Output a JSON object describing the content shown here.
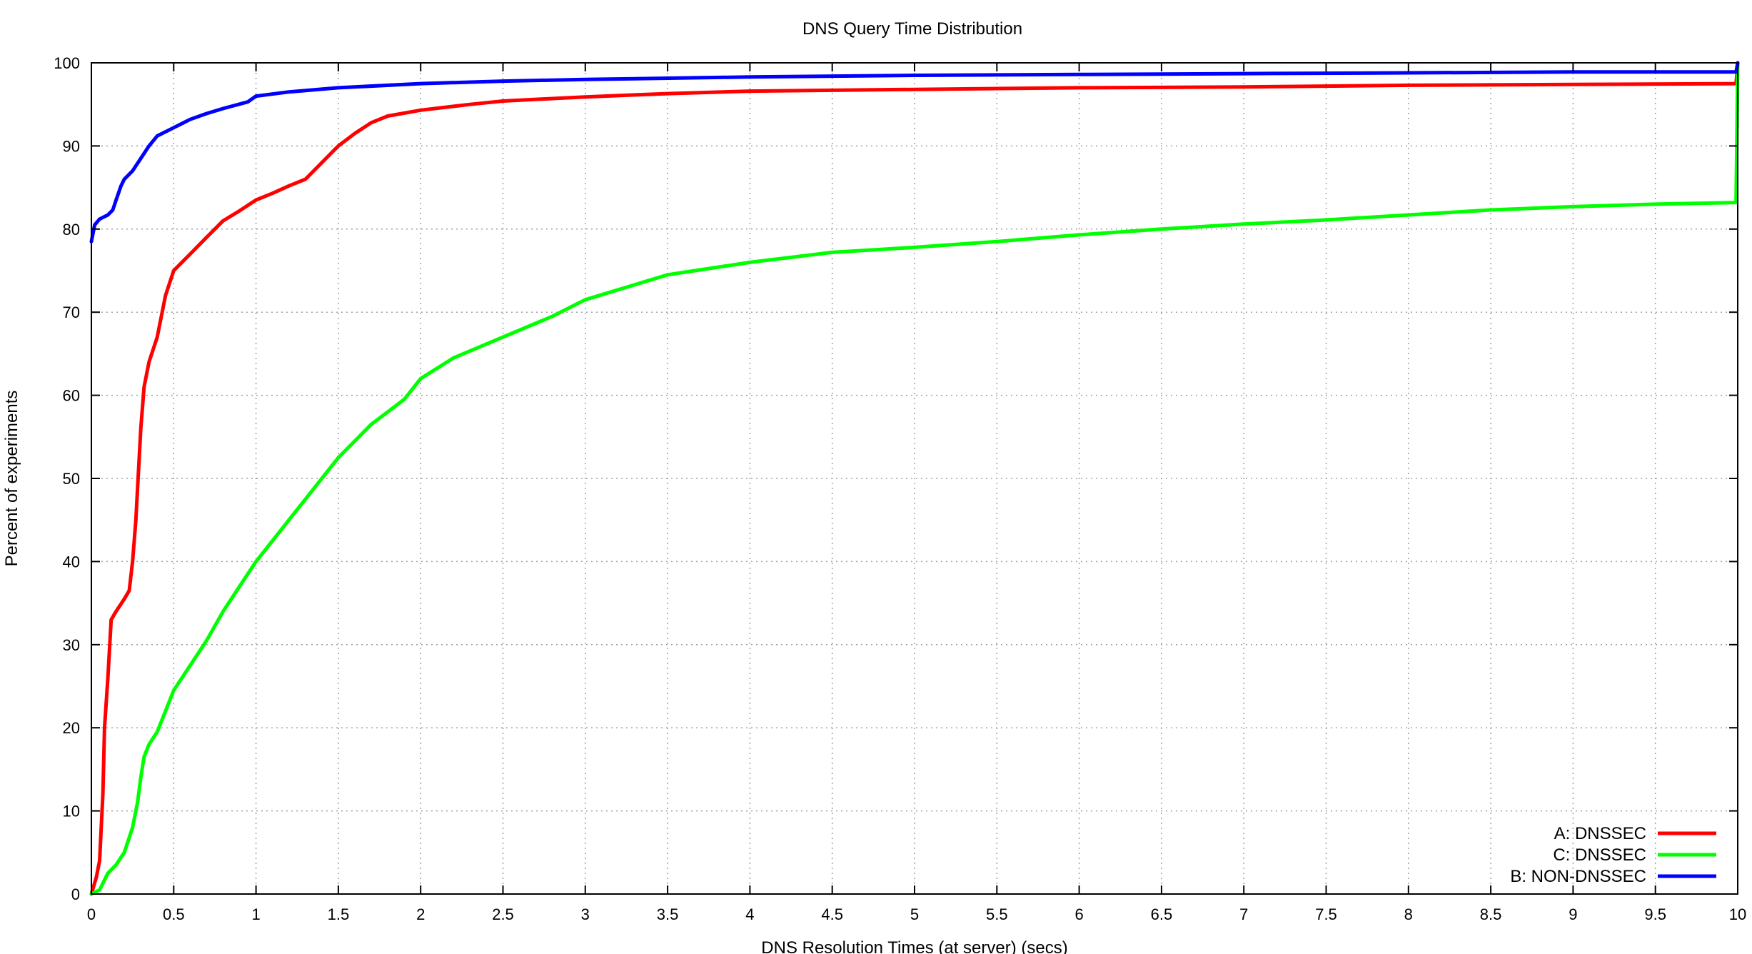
{
  "chart_data": {
    "type": "line",
    "title": "DNS Query Time Distribution",
    "xlabel": "DNS Resolution Times (at server) (secs)",
    "ylabel": "Percent of experiments",
    "xlim": [
      0,
      10
    ],
    "ylim": [
      0,
      100
    ],
    "x_ticks": [
      0,
      0.5,
      1,
      1.5,
      2,
      2.5,
      3,
      3.5,
      4,
      4.5,
      5,
      5.5,
      6,
      6.5,
      7,
      7.5,
      8,
      8.5,
      9,
      9.5,
      10
    ],
    "x_tick_labels": [
      "0",
      "0.5",
      "1",
      "1.5",
      "2",
      "2.5",
      "3",
      "3.5",
      "4",
      "4.5",
      "5",
      "5.5",
      "6",
      "6.5",
      "7",
      "7.5",
      "8",
      "8.5",
      "9",
      "9.5",
      "10"
    ],
    "y_ticks": [
      0,
      10,
      20,
      30,
      40,
      50,
      60,
      70,
      80,
      90,
      100
    ],
    "y_tick_labels": [
      "0",
      "10",
      "20",
      "30",
      "40",
      "50",
      "60",
      "70",
      "80",
      "90",
      "100"
    ],
    "grid": true,
    "legend_position": "bottom-right",
    "series": [
      {
        "name": "A: DNSSEC",
        "color": "#ff0000",
        "points": [
          [
            0,
            0
          ],
          [
            0.03,
            2
          ],
          [
            0.05,
            4
          ],
          [
            0.07,
            12
          ],
          [
            0.08,
            20
          ],
          [
            0.1,
            26
          ],
          [
            0.12,
            33
          ],
          [
            0.15,
            34
          ],
          [
            0.2,
            35.5
          ],
          [
            0.23,
            36.5
          ],
          [
            0.25,
            40
          ],
          [
            0.27,
            45
          ],
          [
            0.3,
            56
          ],
          [
            0.32,
            61
          ],
          [
            0.35,
            64
          ],
          [
            0.4,
            67
          ],
          [
            0.45,
            72
          ],
          [
            0.5,
            75
          ],
          [
            0.6,
            77
          ],
          [
            0.7,
            79
          ],
          [
            0.8,
            81
          ],
          [
            0.9,
            82.2
          ],
          [
            1.0,
            83.5
          ],
          [
            1.1,
            84.3
          ],
          [
            1.2,
            85.2
          ],
          [
            1.3,
            86
          ],
          [
            1.4,
            88
          ],
          [
            1.5,
            90
          ],
          [
            1.6,
            91.5
          ],
          [
            1.7,
            92.8
          ],
          [
            1.8,
            93.6
          ],
          [
            2.0,
            94.3
          ],
          [
            2.3,
            95
          ],
          [
            2.5,
            95.4
          ],
          [
            3.0,
            95.9
          ],
          [
            3.5,
            96.3
          ],
          [
            4.0,
            96.6
          ],
          [
            5.0,
            96.8
          ],
          [
            6.0,
            97
          ],
          [
            7.0,
            97.1
          ],
          [
            8.0,
            97.3
          ],
          [
            9.0,
            97.4
          ],
          [
            9.99,
            97.5
          ],
          [
            10.0,
            100
          ]
        ]
      },
      {
        "name": "C: DNSSEC",
        "color": "#00ff00",
        "points": [
          [
            0,
            0
          ],
          [
            0.05,
            0.5
          ],
          [
            0.1,
            2.5
          ],
          [
            0.15,
            3.5
          ],
          [
            0.2,
            5
          ],
          [
            0.25,
            8
          ],
          [
            0.28,
            11
          ],
          [
            0.3,
            14
          ],
          [
            0.32,
            16.5
          ],
          [
            0.35,
            18
          ],
          [
            0.4,
            19.5
          ],
          [
            0.45,
            22
          ],
          [
            0.5,
            24.5
          ],
          [
            0.6,
            27.5
          ],
          [
            0.7,
            30.5
          ],
          [
            0.8,
            34
          ],
          [
            0.9,
            37
          ],
          [
            1.0,
            40
          ],
          [
            1.1,
            42.5
          ],
          [
            1.2,
            45
          ],
          [
            1.3,
            47.5
          ],
          [
            1.4,
            50
          ],
          [
            1.5,
            52.5
          ],
          [
            1.6,
            54.5
          ],
          [
            1.7,
            56.5
          ],
          [
            1.8,
            58
          ],
          [
            1.9,
            59.5
          ],
          [
            2.0,
            62
          ],
          [
            2.2,
            64.5
          ],
          [
            2.5,
            67
          ],
          [
            2.8,
            69.5
          ],
          [
            3.0,
            71.5
          ],
          [
            3.5,
            74.5
          ],
          [
            4.0,
            76
          ],
          [
            4.5,
            77.2
          ],
          [
            5.0,
            77.8
          ],
          [
            5.5,
            78.5
          ],
          [
            6.0,
            79.3
          ],
          [
            6.5,
            80
          ],
          [
            7.0,
            80.6
          ],
          [
            7.5,
            81.1
          ],
          [
            8.0,
            81.7
          ],
          [
            8.5,
            82.3
          ],
          [
            9.0,
            82.7
          ],
          [
            9.5,
            83
          ],
          [
            9.99,
            83.2
          ],
          [
            10.0,
            100
          ]
        ]
      },
      {
        "name": "B: NON-DNSSEC",
        "color": "#0000ff",
        "points": [
          [
            0,
            78.5
          ],
          [
            0.02,
            80.5
          ],
          [
            0.05,
            81.2
          ],
          [
            0.1,
            81.7
          ],
          [
            0.13,
            82.3
          ],
          [
            0.15,
            83.5
          ],
          [
            0.18,
            85.2
          ],
          [
            0.2,
            86
          ],
          [
            0.25,
            87
          ],
          [
            0.3,
            88.5
          ],
          [
            0.35,
            90
          ],
          [
            0.4,
            91.2
          ],
          [
            0.5,
            92.2
          ],
          [
            0.6,
            93.2
          ],
          [
            0.7,
            93.9
          ],
          [
            0.8,
            94.5
          ],
          [
            0.95,
            95.3
          ],
          [
            1.0,
            96
          ],
          [
            1.2,
            96.5
          ],
          [
            1.5,
            97
          ],
          [
            2.0,
            97.5
          ],
          [
            2.5,
            97.8
          ],
          [
            3.0,
            98
          ],
          [
            4.0,
            98.3
          ],
          [
            5.0,
            98.5
          ],
          [
            6.0,
            98.6
          ],
          [
            7.0,
            98.7
          ],
          [
            8.0,
            98.8
          ],
          [
            9.0,
            98.9
          ],
          [
            9.99,
            98.9
          ],
          [
            10.0,
            100
          ]
        ]
      }
    ]
  }
}
